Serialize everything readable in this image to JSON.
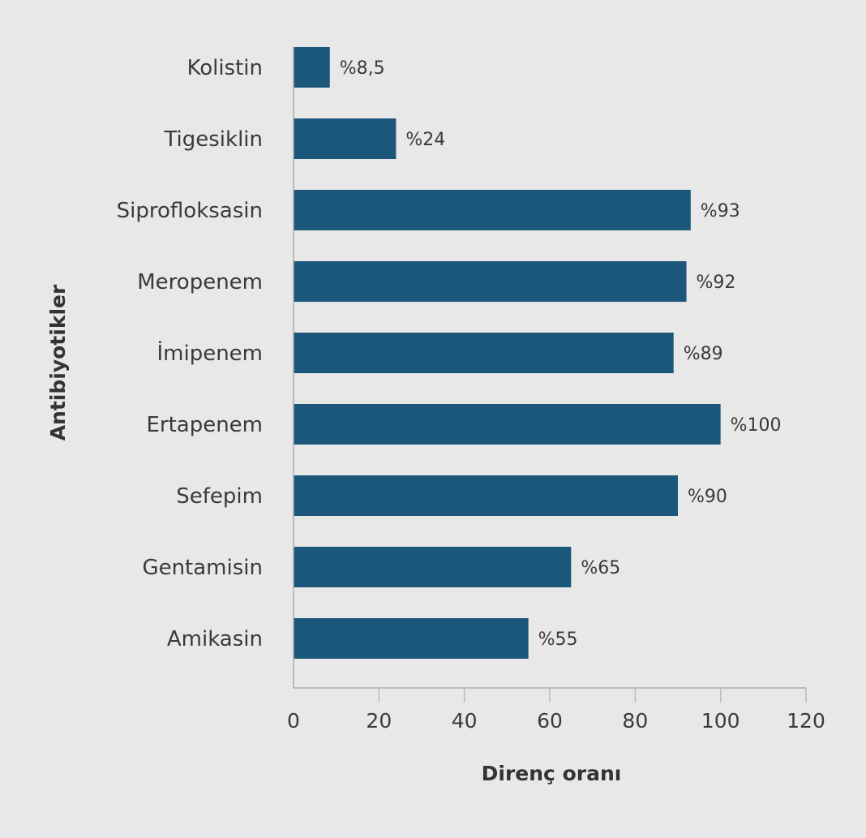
{
  "chart_data": {
    "type": "bar",
    "orientation": "horizontal",
    "title": "",
    "xlabel": "Direnç oranı",
    "ylabel": "Antibiyotikler",
    "categories": [
      "Kolistin",
      "Tigesiklin",
      "Siprofloksasin",
      "Meropenem",
      "İmipenem",
      "Ertapenem",
      "Sefepim",
      "Gentamisin",
      "Amikasin"
    ],
    "values": [
      8.5,
      24,
      93,
      92,
      89,
      100,
      90,
      65,
      55
    ],
    "data_labels": [
      "%8,5",
      "%24",
      "%93",
      "%92",
      "%89",
      "%100",
      "%90",
      "%65",
      "%55"
    ],
    "xlim": [
      0,
      120
    ],
    "xticks": [
      "0",
      "20",
      "40",
      "60",
      "80",
      "100",
      "120"
    ],
    "grid": false,
    "bar_color": "#1b577b",
    "background": "#e8e8e8"
  }
}
